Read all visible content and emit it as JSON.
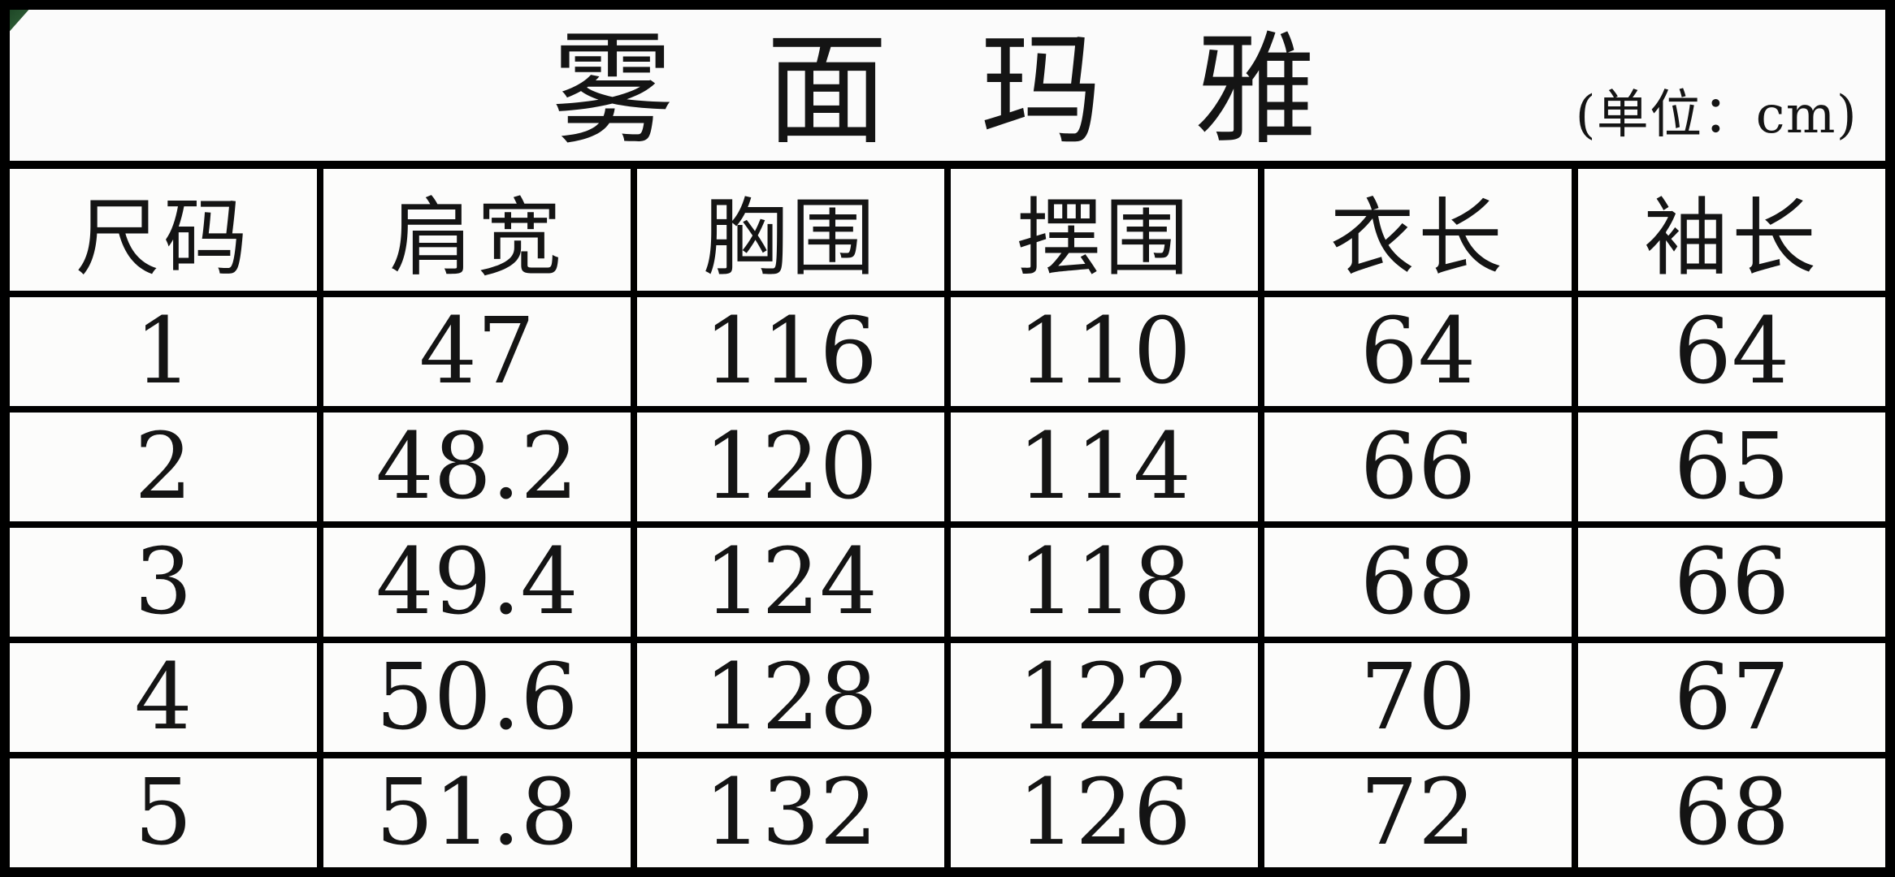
{
  "header": {
    "title": "雾 面 玛 雅",
    "unit_note": "(单位：cm)"
  },
  "chart_data": {
    "type": "table",
    "title": "雾面玛雅",
    "unit": "cm",
    "columns": [
      "尺码",
      "肩宽",
      "胸围",
      "摆围",
      "衣长",
      "袖长"
    ],
    "rows": [
      [
        "1",
        "47",
        "116",
        "110",
        "64",
        "64"
      ],
      [
        "2",
        "48.2",
        "120",
        "114",
        "66",
        "65"
      ],
      [
        "3",
        "49.4",
        "124",
        "118",
        "68",
        "66"
      ],
      [
        "4",
        "50.6",
        "128",
        "122",
        "70",
        "67"
      ],
      [
        "5",
        "51.8",
        "132",
        "126",
        "72",
        "68"
      ]
    ]
  },
  "colors": {
    "border": "#000000",
    "background": "#fbfbfb",
    "text": "#141414",
    "corner_accent": "#1e4a26"
  }
}
